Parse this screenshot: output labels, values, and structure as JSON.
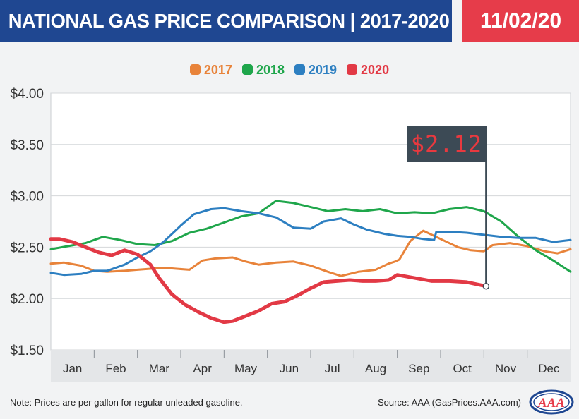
{
  "header": {
    "title": "NATIONAL GAS PRICE COMPARISON | 2017-2020",
    "date": "11/02/20"
  },
  "colors": {
    "header_blue": "#1f4791",
    "header_red": "#e63c4a",
    "series_2017": "#e8833a",
    "series_2018": "#1fa64b",
    "series_2019": "#2d7fc1",
    "series_2020": "#e23945",
    "callout_bg": "#3c4a55",
    "callout_text": "#e8393f"
  },
  "footer": {
    "note": "Note: Prices are per gallon for regular unleaded gasoline.",
    "source": "Source: AAA (GasPrices.AAA.com)",
    "logo_text": "AAA"
  },
  "chart_data": {
    "type": "line",
    "title": "",
    "xlabel": "",
    "ylabel": "",
    "ylim": [
      1.5,
      4.0
    ],
    "xlim": [
      0,
      12
    ],
    "yticks": [
      "$1.50",
      "$2.00",
      "$2.50",
      "$3.00",
      "$3.50",
      "$4.00"
    ],
    "ytick_values": [
      1.5,
      2.0,
      2.5,
      3.0,
      3.5,
      4.0
    ],
    "categories": [
      "Jan",
      "Feb",
      "Mar",
      "Apr",
      "May",
      "Jun",
      "Jul",
      "Aug",
      "Sep",
      "Oct",
      "Nov",
      "Dec"
    ],
    "legend_position": "top-center",
    "grid": "horizontal",
    "callout": {
      "label": "$2.12",
      "value": 2.12,
      "x": 10.05
    },
    "series": [
      {
        "name": "2017",
        "x": [
          0,
          0.3,
          0.7,
          1,
          1.3,
          1.7,
          2,
          2.3,
          2.6,
          2.9,
          3.2,
          3.5,
          3.8,
          4.2,
          4.5,
          4.8,
          5.2,
          5.6,
          6,
          6.4,
          6.7,
          7.1,
          7.5,
          7.8,
          7.95,
          8.05,
          8.3,
          8.6,
          9,
          9.4,
          9.7,
          10,
          10.2,
          10.6,
          11,
          11.4,
          11.7,
          12
        ],
        "values": [
          2.34,
          2.35,
          2.32,
          2.27,
          2.26,
          2.27,
          2.28,
          2.29,
          2.3,
          2.29,
          2.28,
          2.37,
          2.39,
          2.4,
          2.36,
          2.33,
          2.35,
          2.36,
          2.32,
          2.26,
          2.22,
          2.26,
          2.28,
          2.34,
          2.36,
          2.38,
          2.56,
          2.66,
          2.58,
          2.5,
          2.47,
          2.46,
          2.52,
          2.54,
          2.51,
          2.46,
          2.44,
          2.48
        ]
      },
      {
        "name": "2018",
        "x": [
          0,
          0.4,
          0.8,
          1.2,
          1.6,
          2,
          2.4,
          2.8,
          3.2,
          3.6,
          4,
          4.4,
          4.8,
          5.2,
          5.6,
          6,
          6.4,
          6.8,
          7.2,
          7.6,
          8,
          8.4,
          8.8,
          9.2,
          9.6,
          10,
          10.4,
          10.8,
          11.2,
          11.6,
          12
        ],
        "values": [
          2.48,
          2.51,
          2.54,
          2.6,
          2.57,
          2.53,
          2.52,
          2.56,
          2.64,
          2.68,
          2.74,
          2.8,
          2.83,
          2.95,
          2.93,
          2.89,
          2.85,
          2.87,
          2.85,
          2.87,
          2.83,
          2.84,
          2.83,
          2.87,
          2.89,
          2.85,
          2.75,
          2.6,
          2.47,
          2.37,
          2.26
        ]
      },
      {
        "name": "2019",
        "x": [
          0,
          0.3,
          0.7,
          1,
          1.3,
          1.7,
          2,
          2.3,
          2.6,
          3,
          3.3,
          3.7,
          4,
          4.4,
          4.8,
          5.2,
          5.6,
          6,
          6.3,
          6.7,
          7,
          7.3,
          7.7,
          8,
          8.3,
          8.6,
          8.85,
          8.9,
          9.2,
          9.6,
          10,
          10.4,
          10.8,
          11.2,
          11.6,
          12
        ],
        "values": [
          2.25,
          2.23,
          2.24,
          2.27,
          2.27,
          2.33,
          2.4,
          2.46,
          2.55,
          2.71,
          2.82,
          2.87,
          2.88,
          2.85,
          2.83,
          2.79,
          2.69,
          2.68,
          2.75,
          2.78,
          2.72,
          2.67,
          2.63,
          2.61,
          2.6,
          2.58,
          2.57,
          2.65,
          2.65,
          2.64,
          2.62,
          2.6,
          2.59,
          2.59,
          2.55,
          2.57
        ]
      },
      {
        "name": "2020",
        "x": [
          0,
          0.2,
          0.5,
          0.8,
          1.1,
          1.4,
          1.7,
          2,
          2.3,
          2.5,
          2.8,
          3.1,
          3.4,
          3.7,
          4,
          4.2,
          4.5,
          4.8,
          5.1,
          5.4,
          5.7,
          6,
          6.3,
          6.6,
          6.9,
          7.2,
          7.5,
          7.8,
          8,
          8.4,
          8.8,
          9.2,
          9.6,
          10.05
        ],
        "values": [
          2.58,
          2.58,
          2.55,
          2.5,
          2.45,
          2.42,
          2.47,
          2.43,
          2.33,
          2.2,
          2.04,
          1.94,
          1.87,
          1.81,
          1.77,
          1.78,
          1.83,
          1.88,
          1.95,
          1.97,
          2.03,
          2.1,
          2.16,
          2.17,
          2.18,
          2.17,
          2.17,
          2.18,
          2.23,
          2.2,
          2.17,
          2.17,
          2.16,
          2.12
        ]
      }
    ]
  }
}
